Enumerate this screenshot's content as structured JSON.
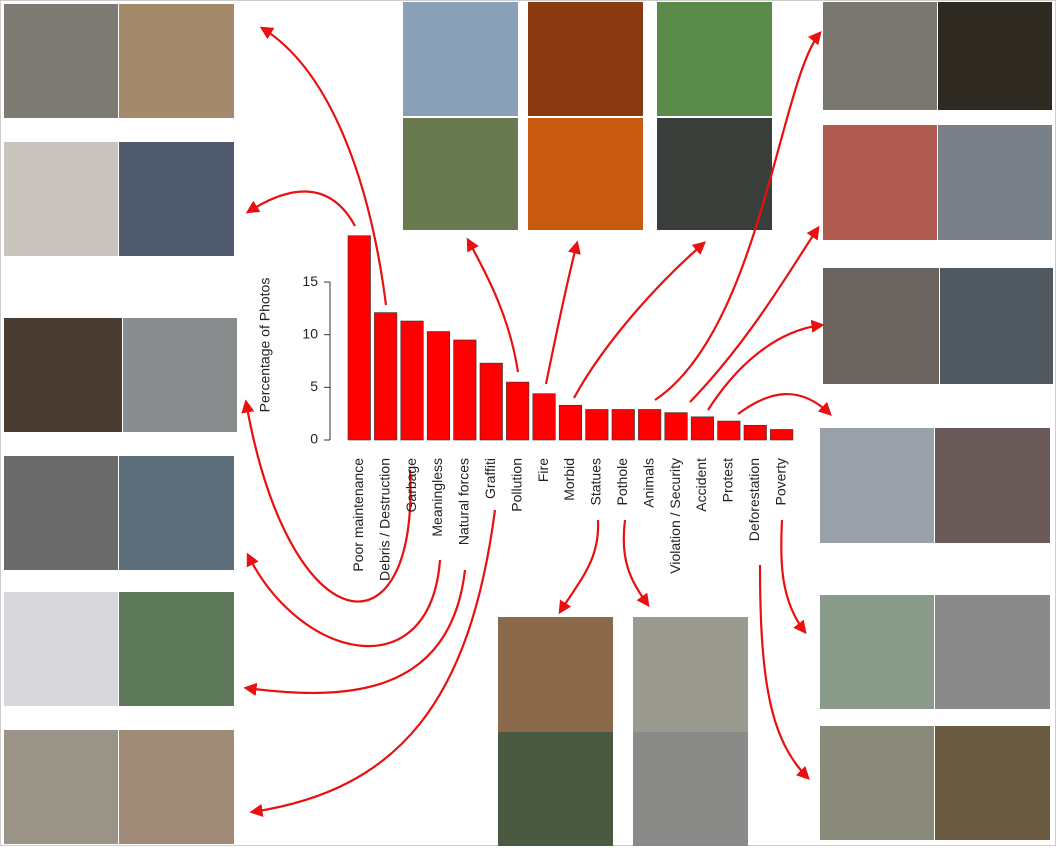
{
  "chart_data": {
    "type": "bar",
    "y_label": "Percentage of Photos",
    "categories": [
      "Poor maintenance",
      "Debris / Destruction",
      "Garbage",
      "Meaningless",
      "Natural forces",
      "Graffiti",
      "Pollution",
      "Fire",
      "Morbid",
      "Statues",
      "Pothole",
      "Animals",
      "Violation / Security",
      "Accident",
      "Protest",
      "Deforestation",
      "Poverty"
    ],
    "values": [
      19.4,
      12.1,
      11.3,
      10.3,
      9.5,
      7.3,
      5.5,
      4.4,
      3.3,
      2.9,
      2.9,
      2.9,
      2.6,
      2.2,
      1.8,
      1.4,
      1.0
    ],
    "color": "#ff0000",
    "ylim": [
      0,
      20
    ],
    "yticks": [
      0,
      5,
      10,
      15
    ]
  }
}
